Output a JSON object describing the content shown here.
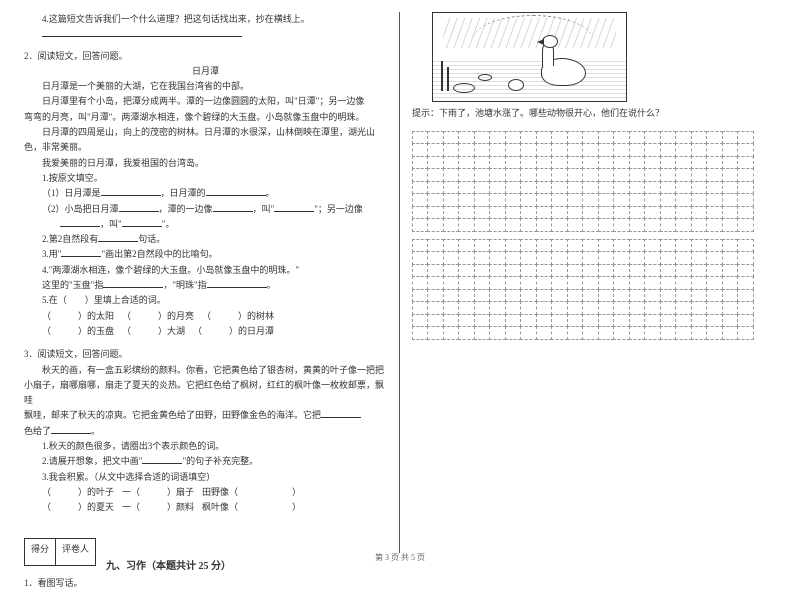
{
  "left": {
    "q4": "4.这篇短文告诉我们一个什么道理？把这句话找出来，抄在横线上。",
    "sec2": "2．阅读短文，回答问题。",
    "title2": "日月潭",
    "p2_1": "日月潭是一个美丽的大湖，它在我国台湾省的中部。",
    "p2_2a": "日月潭里有个小岛，把潭分成两半。潭的一边像圆圆的太阳，叫\"日潭\"；另一边像",
    "p2_2b": "弯弯的月亮，叫\"月潭\"。两潭湖水相连，像个碧绿的大玉盘。小岛就像玉盘中的明珠。",
    "p2_3a": "日月潭的四周是山，向上的茂密的树林。日月潭的水很深，山林倒映在潭里，湖光山",
    "p2_3b": "色，非常美丽。",
    "p2_4": "我爱美丽的日月潭，我爱祖国的台湾岛。",
    "q2_1": "1.按原文填空。",
    "q2_1_1a": "（1）日月潭是",
    "q2_1_1b": "，日月潭的",
    "q2_1_1c": "。",
    "q2_1_2a": "（2）小岛把日月潭",
    "q2_1_2b": "，潭的一边像",
    "q2_1_2c": "，叫\"",
    "q2_1_2d": "\"；另一边像",
    "q2_1_2e": "，叫\"",
    "q2_1_2f": "\"。",
    "q2_2a": "2.第2自然段有",
    "q2_2b": "句话。",
    "q2_3a": "3.用\"",
    "q2_3b": "\"画出第2自然段中的比喻句。",
    "q2_4a": "4.\"两潭湖水相连，像个碧绿的大玉盘。小岛就像玉盘中的明珠。\"",
    "q2_4b": "这里的\"玉盘\"指",
    "q2_4c": "，\"明珠\"指",
    "q2_4d": "。",
    "q2_5": "5.在（　　）里填上合适的词。",
    "q2_5_r1a": "（　　　）的太阳",
    "q2_5_r1b": "（　　　）的月亮",
    "q2_5_r1c": "（　　　）的树林",
    "q2_5_r2a": "（　　　）的玉盘",
    "q2_5_r2b": "（　　　）大湖",
    "q2_5_r2c": "（　　　）的日月潭",
    "sec3": "3．阅读短文，回答问题。",
    "p3_1a": "秋天的画，有一盒五彩缤纷的颜料。你看，它把黄色给了银杏树，黄黄的叶子像一把把",
    "p3_1b": "小扇子，扇哪扇哪，扇走了夏天的炎热。它把红色给了枫树，红红的枫叶像一枚枚邮票，飘哇",
    "p3_1c": "飘哇，邮来了秋天的凉爽。它把金黄色给了田野，田野像金色的海洋。它把",
    "p3_1d": "色给了",
    "p3_1e": "。",
    "q3_1": "1.秋天的颜色很多，请圈出3个表示颜色的词。",
    "q3_2a": "2.请展开想象，把文中画\"",
    "q3_2b": "\"的句子补充完整。",
    "q3_3": "3.我会积累。（从文中选择合适的词语填空）",
    "q3_3_r1a": "（　　　）的叶子",
    "q3_3_r1b": "一（　　　）扇子",
    "q3_3_r1c": "田野像（　　　　　　）",
    "q3_3_r2a": "（　　　）的夏天",
    "q3_3_r2b": "一（　　　）颜料",
    "q3_3_r2c": "枫叶像（　　　　　　）",
    "score_l": "得分",
    "score_r": "评卷人",
    "sec9": "九、习作（本题共计 25 分）",
    "q9_1": "1．看图写话。"
  },
  "right": {
    "hint": "提示：下雨了，池塘水涨了。哪些动物很开心，他们在说什么？",
    "grid_config": {
      "cols": 22,
      "rows_block1": 8,
      "rows_block2": 8
    }
  },
  "footer": "第 3 页 共 5 页"
}
